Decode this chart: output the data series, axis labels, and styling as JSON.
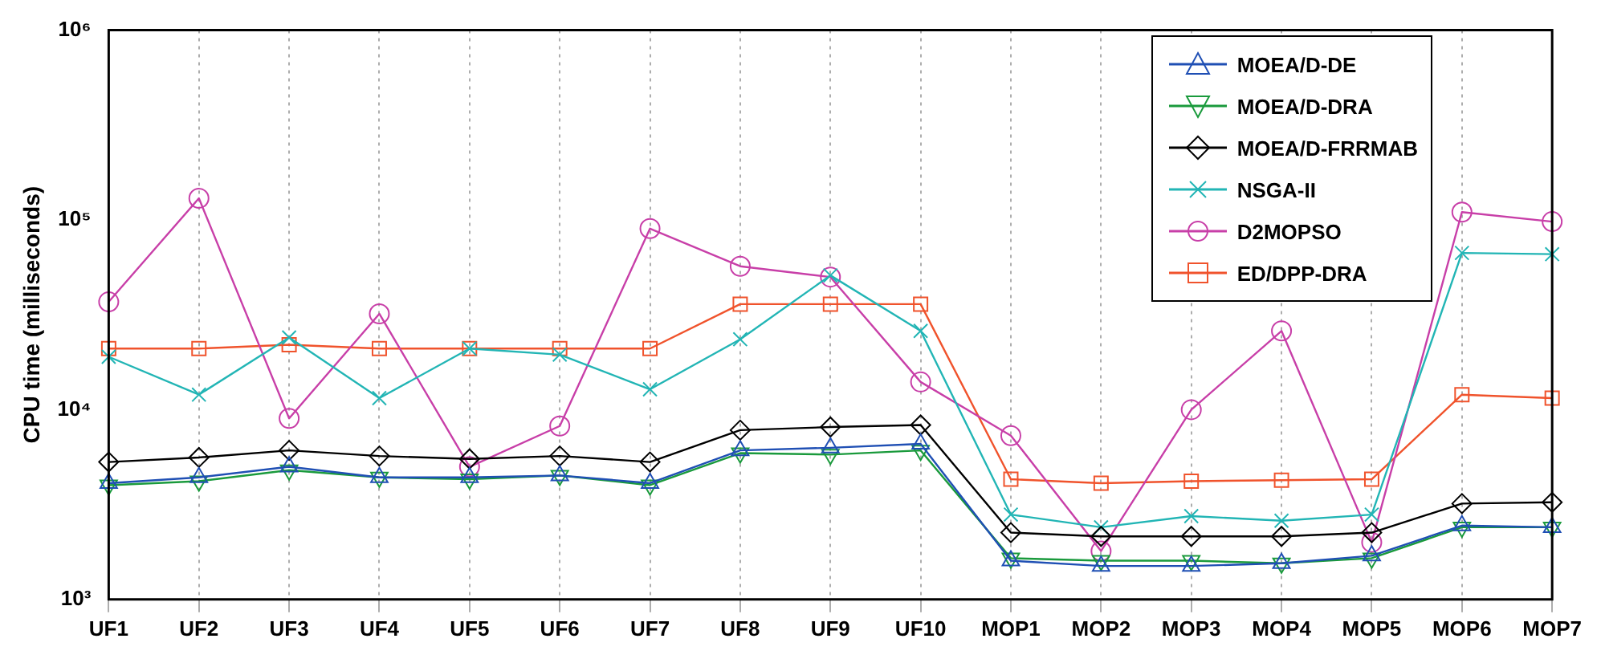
{
  "chart_data": {
    "type": "line",
    "ylabel": "CPU time (milliseconds)",
    "categories": [
      "UF1",
      "UF2",
      "UF3",
      "UF4",
      "UF5",
      "UF6",
      "UF7",
      "UF8",
      "UF9",
      "UF10",
      "MOP1",
      "MOP2",
      "MOP3",
      "MOP4",
      "MOP5",
      "MOP6",
      "MOP7"
    ],
    "log": true,
    "ylim": [
      1000,
      1000000
    ],
    "yticks": [
      {
        "value": 1000,
        "label": "10³"
      },
      {
        "value": 10000,
        "label": "10⁴"
      },
      {
        "value": 100000,
        "label": "10⁵"
      },
      {
        "value": 1000000,
        "label": "10⁶"
      }
    ],
    "grid": "x",
    "legend": "top right",
    "line_style": "solid",
    "series": [
      {
        "name": "MOEA/D-DE",
        "color": "#1f4fb4",
        "marker": "triangle",
        "values": [
          4100,
          4400,
          5000,
          4400,
          4400,
          4500,
          4100,
          6100,
          6300,
          6600,
          1600,
          1500,
          1500,
          1550,
          1700,
          2450,
          2400
        ]
      },
      {
        "name": "MOEA/D-DRA",
        "color": "#1a9a3c",
        "marker": "triangle-down",
        "values": [
          4000,
          4200,
          4800,
          4400,
          4300,
          4500,
          4000,
          5900,
          5800,
          6100,
          1650,
          1600,
          1600,
          1550,
          1650,
          2400,
          2400
        ]
      },
      {
        "name": "MOEA/D-FRRMAB",
        "color": "#000000",
        "marker": "diamond",
        "values": [
          5300,
          5600,
          6100,
          5700,
          5500,
          5700,
          5300,
          7800,
          8100,
          8300,
          2250,
          2150,
          2150,
          2150,
          2250,
          3200,
          3250
        ]
      },
      {
        "name": "NSGA-II",
        "color": "#22b5b5",
        "marker": "cross",
        "values": [
          19000,
          12000,
          24000,
          11500,
          21000,
          19500,
          12800,
          23500,
          51000,
          26000,
          2800,
          2400,
          2750,
          2600,
          2800,
          67000,
          66000
        ]
      },
      {
        "name": "D2MOPSO",
        "color": "#c83fa8",
        "marker": "circle",
        "values": [
          37000,
          130000,
          9000,
          32000,
          5000,
          8200,
          90000,
          57000,
          50000,
          14000,
          7300,
          1800,
          10000,
          26000,
          2000,
          110000,
          98000
        ]
      },
      {
        "name": "ED/DPP-DRA",
        "color": "#f0532c",
        "marker": "square",
        "values": [
          21000,
          21000,
          22000,
          21000,
          21000,
          21000,
          21000,
          36000,
          36000,
          36000,
          4300,
          4100,
          4200,
          4250,
          4300,
          12000,
          11500
        ]
      }
    ]
  }
}
